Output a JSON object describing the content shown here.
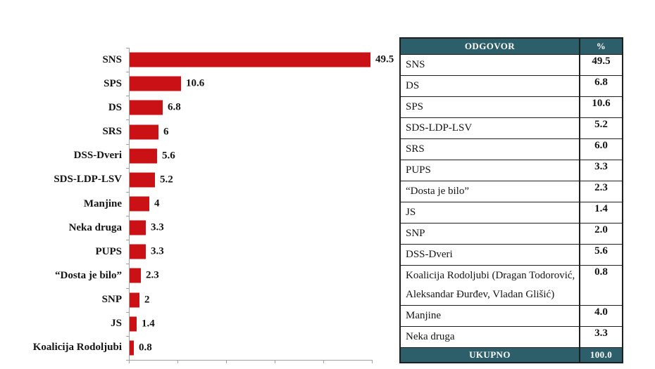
{
  "colors": {
    "bar": "#C91116",
    "table_header_bg": "#2D5F6B",
    "axis": "#A0A0A0",
    "border": "#1F1F1F",
    "text": "#141414"
  },
  "chart_data": [
    {
      "type": "bar",
      "orientation": "horizontal",
      "title": "",
      "xlabel": "",
      "ylabel": "",
      "categories": [
        "SNS",
        "SPS",
        "DS",
        "SRS",
        "DSS-Dveri",
        "SDS-LDP-LSV",
        "Manjine",
        "Neka druga",
        "PUPS",
        "“Dosta je bilo”",
        "SNP",
        "JS",
        "Koalicija Rodoljubi"
      ],
      "values": [
        49.5,
        10.6,
        6.8,
        6,
        5.6,
        5.2,
        4,
        3.3,
        3.3,
        2.3,
        2,
        1.4,
        0.8
      ],
      "data_labels": [
        "49.5",
        "10.6",
        "6.8",
        "6",
        "5.6",
        "5.2",
        "4",
        "3.3",
        "3.3",
        "2.3",
        "2",
        "1.4",
        "0.8"
      ],
      "xlim": [
        0,
        50
      ],
      "x_ticks": [
        0,
        10,
        20,
        30,
        40,
        50
      ],
      "grid": false,
      "legend": "none",
      "bar_color": "#C91116"
    },
    {
      "type": "table",
      "columns": [
        "ODGOVOR",
        "%"
      ],
      "rows": [
        [
          "SNS",
          "49.5"
        ],
        [
          "DS",
          "6.8"
        ],
        [
          "SPS",
          "10.6"
        ],
        [
          "SDS-LDP-LSV",
          "5.2"
        ],
        [
          "SRS",
          "6.0"
        ],
        [
          "PUPS",
          "3.3"
        ],
        [
          "“Dosta je bilo”",
          "2.3"
        ],
        [
          "JS",
          "1.4"
        ],
        [
          "SNP",
          "2.0"
        ],
        [
          "DSS-Dveri",
          "5.6"
        ],
        [
          "Koalicija Rodoljubi (Dragan Todorović, Aleksandar Đurđev, Vladan Glišić)",
          "0.8"
        ],
        [
          "Manjine",
          "4.0"
        ],
        [
          "Neka druga",
          "3.3"
        ]
      ],
      "footer": [
        "UKUPNO",
        "100.0"
      ]
    }
  ]
}
